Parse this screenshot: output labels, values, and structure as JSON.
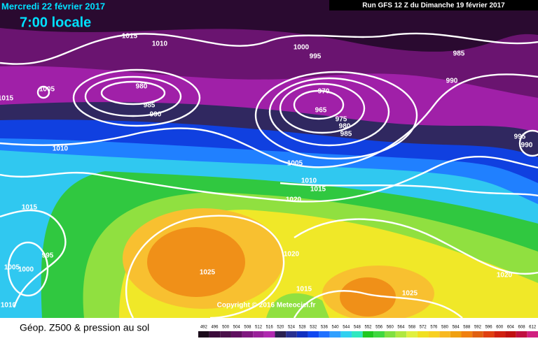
{
  "header": {
    "date": "Mercredi 22 février 2017",
    "time": "7:00 locale",
    "run": "Run GFS 12 Z du Dimanche 19 février 2017"
  },
  "isobar_labels": [
    "1015",
    "1010",
    "1000",
    "995",
    "985",
    "990",
    "1005",
    "1015",
    "980",
    "985",
    "990",
    "970",
    "965",
    "975",
    "980",
    "985",
    "995",
    "990",
    "1010",
    "1005",
    "1010",
    "1015",
    "1020",
    "1015",
    "995",
    "1005",
    "1000",
    "1020",
    "1025",
    "1020",
    "1015",
    "1025",
    "1010"
  ],
  "copyright": "Copyright © 2016 Meteociel.fr",
  "footer": {
    "title": "Géop. Z500 & pression au sol"
  },
  "legend": {
    "scale": [
      492,
      496,
      500,
      504,
      508,
      512,
      516,
      520,
      524,
      528,
      532,
      536,
      540,
      544,
      548,
      552,
      556,
      560,
      564,
      568,
      572,
      576,
      580,
      584,
      588,
      592,
      596,
      600,
      604,
      608,
      612
    ],
    "colors": [
      "#1a0a1a",
      "#3a0a3a",
      "#4a104a",
      "#601060",
      "#801880",
      "#9a209a",
      "#b028b0",
      "#2a2050",
      "#283090",
      "#1030c0",
      "#1048f0",
      "#2070ff",
      "#30a0ff",
      "#30d0f0",
      "#30e8c0",
      "#20c820",
      "#40d840",
      "#80e040",
      "#b0e840",
      "#e0f040",
      "#f0e020",
      "#f8d020",
      "#f8b820",
      "#f0a010",
      "#f08010",
      "#e06010",
      "#e04010",
      "#d02010",
      "#c01010",
      "#c01040",
      "#d02080"
    ]
  }
}
